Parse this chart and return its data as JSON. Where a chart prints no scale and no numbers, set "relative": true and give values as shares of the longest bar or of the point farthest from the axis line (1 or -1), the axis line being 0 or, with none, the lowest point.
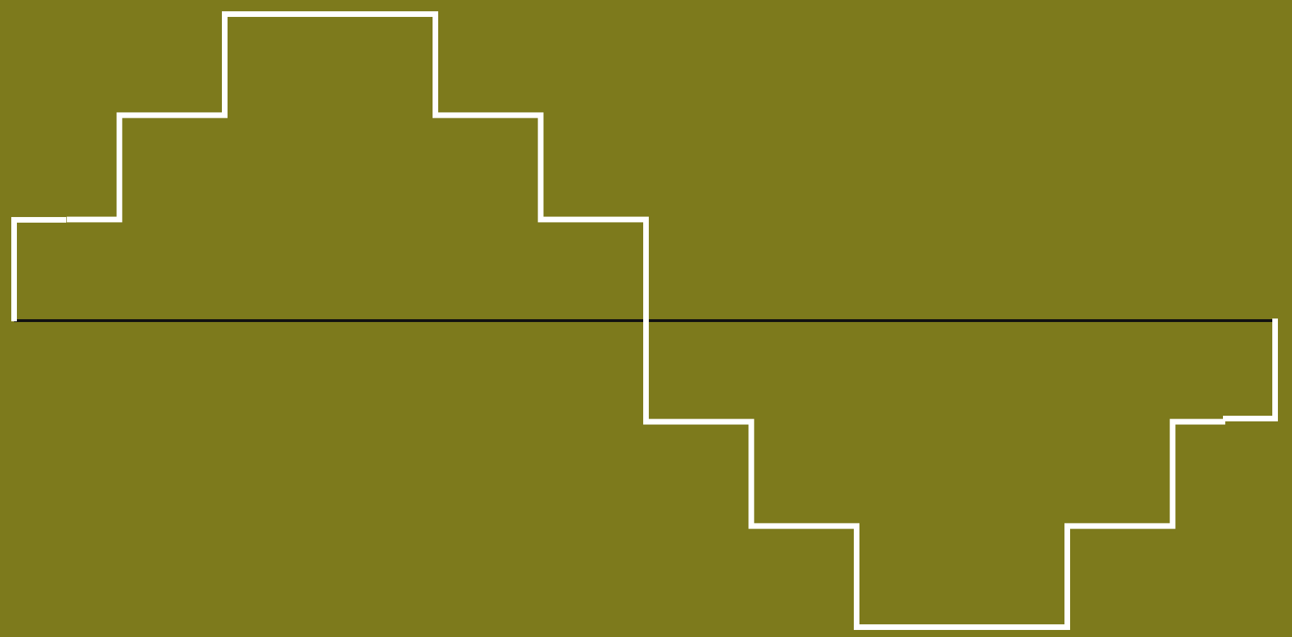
{
  "chart_data": {
    "type": "step",
    "relative": true,
    "categories": [
      null,
      null,
      null,
      null,
      null,
      null,
      null,
      null,
      null,
      null,
      null,
      null
    ],
    "values": [
      0.33,
      0.67,
      1,
      1,
      0.67,
      0.33,
      -0.33,
      -0.67,
      -1,
      -1,
      -0.67,
      -0.33
    ],
    "color": "#ffffff"
  }
}
